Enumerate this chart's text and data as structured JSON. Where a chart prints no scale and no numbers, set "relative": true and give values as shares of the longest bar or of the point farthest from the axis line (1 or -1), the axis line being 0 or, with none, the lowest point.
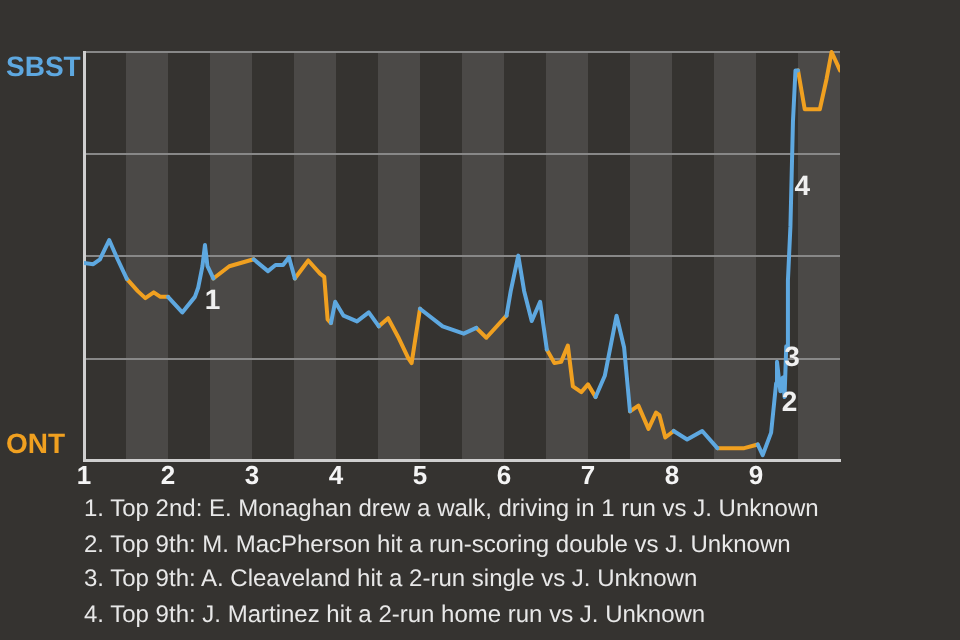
{
  "chart_data": {
    "type": "line",
    "relative": true,
    "grid": "y",
    "legend": "left",
    "marker": "none",
    "line_style": "solid",
    "x": [
      1,
      1.11,
      1.19,
      1.3,
      1.4,
      1.51,
      1.64,
      1.73,
      1.83,
      1.91,
      2,
      2.17,
      2.32,
      2.36,
      2.41,
      2.44,
      2.47,
      2.54,
      2.73,
      3.02,
      3.19,
      3.28,
      3.37,
      3.44,
      3.51,
      3.67,
      3.81,
      3.86,
      3.9,
      3.94,
      3.99,
      4.09,
      4.25,
      4.39,
      4.51,
      4.62,
      4.74,
      4.86,
      4.9,
      5,
      5.27,
      5.52,
      5.67,
      5.79,
      6.03,
      6.08,
      6.17,
      6.24,
      6.33,
      6.43,
      6.51,
      6.6,
      6.68,
      6.76,
      6.82,
      6.92,
      7,
      7.09,
      7.2,
      7.34,
      7.43,
      7.5,
      7.6,
      7.72,
      7.81,
      7.85,
      7.92,
      8.02,
      8.18,
      8.36,
      8.54,
      8.86,
      9.02,
      9.08,
      9.18,
      9.24,
      9.25,
      9.29,
      9.32,
      9.34,
      9.36,
      9.38,
      9.41,
      9.44,
      9.47,
      9.5,
      9.58,
      9.76,
      9.84,
      9.9,
      10
    ],
    "xlim": [
      1,
      10
    ],
    "xticks": [
      1,
      2,
      3,
      4,
      5,
      6,
      7,
      8,
      9
    ],
    "series": [
      {
        "name": "SBST",
        "color": "#5ea8e0",
        "values": [
          0.484,
          0.481,
          0.493,
          0.54,
          0.493,
          0.445,
          null,
          null,
          null,
          null,
          0.401,
          0.363,
          0.401,
          0.424,
          0.476,
          0.528,
          0.476,
          0.446,
          null,
          0.493,
          0.464,
          0.479,
          0.479,
          0.498,
          0.446,
          null,
          null,
          null,
          null,
          0.337,
          0.389,
          0.355,
          0.341,
          0.363,
          0.329,
          null,
          null,
          null,
          null,
          0.372,
          0.329,
          0.311,
          0.325,
          null,
          0.355,
          0.415,
          0.502,
          0.415,
          0.342,
          0.389,
          0.272,
          null,
          null,
          null,
          null,
          null,
          null,
          0.156,
          0.208,
          0.355,
          0.277,
          0.121,
          null,
          null,
          null,
          null,
          null,
          0.073,
          0.052,
          0.073,
          0.031,
          null,
          0.04,
          0.014,
          0.069,
          0.19,
          0.242,
          0.17,
          0.204,
          0.156,
          0.28,
          0.441,
          0.574,
          0.83,
          0.955,
          0.955,
          null,
          null,
          null,
          null,
          null
        ]
      },
      {
        "name": "ONT",
        "color": "#f0a020",
        "values": [
          null,
          null,
          null,
          null,
          null,
          0.445,
          0.415,
          0.398,
          0.412,
          0.401,
          0.401,
          null,
          null,
          null,
          null,
          null,
          null,
          0.446,
          0.476,
          0.493,
          null,
          null,
          null,
          null,
          0.446,
          0.49,
          0.458,
          0.45,
          0.346,
          0.337,
          null,
          null,
          null,
          null,
          0.329,
          0.349,
          0.303,
          0.251,
          0.239,
          0.372,
          null,
          null,
          0.325,
          0.301,
          0.355,
          null,
          null,
          null,
          null,
          null,
          0.272,
          0.239,
          0.242,
          0.282,
          0.182,
          0.168,
          0.187,
          0.156,
          null,
          null,
          null,
          0.121,
          0.135,
          0.078,
          0.118,
          0.112,
          0.057,
          0.073,
          null,
          null,
          0.031,
          0.031,
          0.04,
          null,
          null,
          null,
          null,
          null,
          null,
          null,
          null,
          null,
          null,
          null,
          null,
          0.955,
          0.86,
          0.86,
          0.934,
          1,
          0.955
        ]
      }
    ],
    "bands": [
      {
        "axis": "x",
        "from": 1.5,
        "to": 2,
        "color": "#4b4947"
      },
      {
        "axis": "x",
        "from": 2.5,
        "to": 3,
        "color": "#4b4947"
      },
      {
        "axis": "x",
        "from": 3.5,
        "to": 4,
        "color": "#4b4947"
      },
      {
        "axis": "x",
        "from": 4.5,
        "to": 5,
        "color": "#4b4947"
      },
      {
        "axis": "x",
        "from": 5.5,
        "to": 6,
        "color": "#4b4947"
      },
      {
        "axis": "x",
        "from": 6.5,
        "to": 7,
        "color": "#4b4947"
      },
      {
        "axis": "x",
        "from": 7.5,
        "to": 8,
        "color": "#4b4947"
      },
      {
        "axis": "x",
        "from": 8.5,
        "to": 9,
        "color": "#4b4947"
      },
      {
        "axis": "x",
        "from": 9.5,
        "to": 10,
        "color": "#4b4947"
      }
    ],
    "annotations": [
      {
        "text": "1",
        "x": 2.53,
        "y": 0.39
      },
      {
        "text": "2",
        "x": 9.4,
        "y": 0.14
      },
      {
        "text": "3",
        "x": 9.43,
        "y": 0.25
      },
      {
        "text": "4",
        "x": 9.55,
        "y": 0.67
      },
      "1. Top 2nd: E. Monaghan drew a walk, driving in 1 run vs J. Unknown",
      "2. Top 9th: M. MacPherson hit a run-scoring double vs J. Unknown",
      "3. Top 9th: A. Cleaveland hit a 2-run single vs J. Unknown",
      "4. Top 9th: J. Martinez hit a 2-run home run vs J. Unknown"
    ]
  }
}
